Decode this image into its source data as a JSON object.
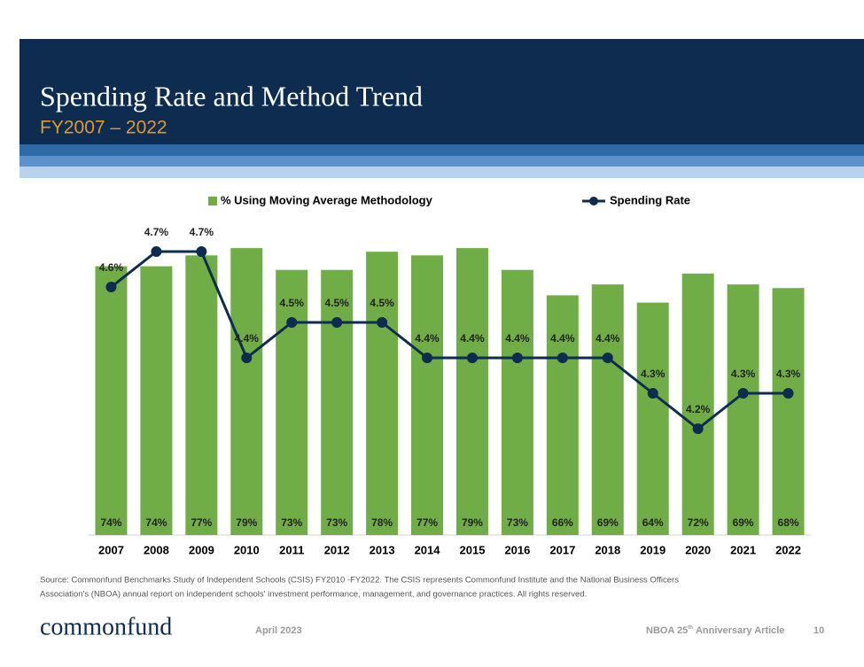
{
  "header": {
    "title": "Spending Rate and Method Trend",
    "subtitle": "FY2007 – 2022"
  },
  "chart_data": {
    "type": "bar-line",
    "categories": [
      "2007",
      "2008",
      "2009",
      "2010",
      "2011",
      "2012",
      "2013",
      "2014",
      "2015",
      "2016",
      "2017",
      "2018",
      "2019",
      "2020",
      "2021",
      "2022"
    ],
    "series": [
      {
        "name": "% Using Moving Average Methodology",
        "type": "bar",
        "color": "#70ad47",
        "values": [
          74,
          74,
          77,
          79,
          73,
          73,
          78,
          77,
          79,
          73,
          66,
          69,
          64,
          72,
          69,
          68
        ],
        "value_labels": [
          "74%",
          "74%",
          "77%",
          "79%",
          "73%",
          "73%",
          "78%",
          "77%",
          "79%",
          "73%",
          "66%",
          "69%",
          "64%",
          "72%",
          "69%",
          "68%"
        ]
      },
      {
        "name": "Spending Rate",
        "type": "line",
        "axis": "y2",
        "color": "#0d2c4f",
        "values": [
          4.6,
          4.7,
          4.7,
          4.4,
          4.5,
          4.5,
          4.5,
          4.4,
          4.4,
          4.4,
          4.4,
          4.4,
          4.3,
          4.2,
          4.3,
          4.3
        ],
        "value_labels": [
          "4.6%",
          "4.7%",
          "4.7%",
          "4.4%",
          "4.5%",
          "4.5%",
          "4.5%",
          "4.4%",
          "4.4%",
          "4.4%",
          "4.4%",
          "4.4%",
          "4.3%",
          "4.2%",
          "4.3%",
          "4.3%"
        ]
      }
    ],
    "ylim": [
      0,
      80
    ],
    "y2lim": [
      3.9,
      4.72
    ],
    "legend": "top"
  },
  "footer": {
    "source": [
      "Source: Commonfund Benchmarks Study of Independent Schools (CSIS) FY2010 -FY2022. The CSIS represents Commonfund Institute and the National Business Officers",
      "Association's (NBOA) annual report on independent schools' investment performance, management, and governance practices. All rights reserved."
    ],
    "logo": "commonfund",
    "date": "April 2023",
    "article": "NBOA 25",
    "article_sup": "th",
    "article_rest": "Anniversary Article",
    "page": "10"
  }
}
